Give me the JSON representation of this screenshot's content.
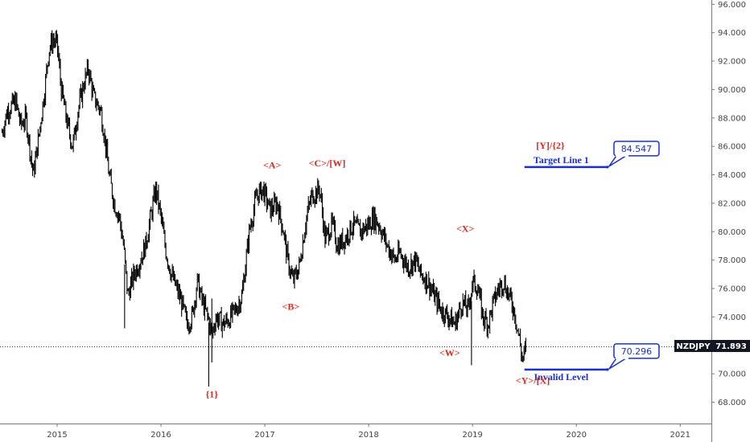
{
  "chart_data": {
    "type": "line",
    "style": "ohlc-bars",
    "symbol": "NZDJPY",
    "last_price": "71.893",
    "ylim": [
      66.5,
      96.3
    ],
    "yticks": [
      "96.000",
      "94.000",
      "92.000",
      "90.000",
      "88.000",
      "86.000",
      "84.000",
      "82.000",
      "80.000",
      "78.000",
      "76.000",
      "74.000",
      "72.000",
      "70.000",
      "68.000"
    ],
    "xlim": [
      2014.45,
      2021.3
    ],
    "xticks": [
      "2015",
      "2016",
      "2017",
      "2018",
      "2019",
      "2020",
      "2021"
    ],
    "grid": false,
    "series": [
      {
        "x": [
          2014.47,
          2014.52,
          2014.6,
          2014.65,
          2014.7,
          2014.77,
          2014.82,
          2014.88,
          2014.92,
          2014.96,
          2015.0,
          2015.04,
          2015.1,
          2015.15,
          2015.2,
          2015.26,
          2015.3,
          2015.35,
          2015.42,
          2015.46,
          2015.5,
          2015.55,
          2015.6,
          2015.64,
          2015.68,
          2015.74,
          2015.8,
          2015.85,
          2015.9,
          2015.95,
          2016.0,
          2016.05,
          2016.1,
          2016.15,
          2016.2,
          2016.25,
          2016.3,
          2016.35,
          2016.4,
          2016.45,
          2016.49,
          2016.53,
          2016.6,
          2016.65,
          2016.72,
          2016.78,
          2016.85,
          2016.92,
          2016.98,
          2017.05,
          2017.12,
          2017.18,
          2017.22,
          2017.27,
          2017.33,
          2017.4,
          2017.45,
          2017.53,
          2017.58,
          2017.65,
          2017.7,
          2017.77,
          2017.85,
          2017.92,
          2018.0,
          2018.05,
          2018.1,
          2018.18,
          2018.25,
          2018.3,
          2018.38,
          2018.45,
          2018.5,
          2018.57,
          2018.63,
          2018.7,
          2018.77,
          2018.83,
          2018.9,
          2018.96,
          2019.0,
          2019.05,
          2019.1,
          2019.15,
          2019.2,
          2019.25,
          2019.3,
          2019.35,
          2019.4,
          2019.45,
          2019.48,
          2019.52
        ],
        "y": [
          87.0,
          88.5,
          89.2,
          87.5,
          88.0,
          84.0,
          86.5,
          90.0,
          92.8,
          93.5,
          93.2,
          90.0,
          87.5,
          86.0,
          88.5,
          90.5,
          91.5,
          89.5,
          88.5,
          86.5,
          84.0,
          82.0,
          81.0,
          79.0,
          75.5,
          77.0,
          78.0,
          79.0,
          81.0,
          83.0,
          81.0,
          78.5,
          77.0,
          76.0,
          75.0,
          73.5,
          74.0,
          76.5,
          75.0,
          74.0,
          72.8,
          74.0,
          73.5,
          73.8,
          74.5,
          75.5,
          80.0,
          82.5,
          83.0,
          81.5,
          82.0,
          80.0,
          78.0,
          76.5,
          77.5,
          81.0,
          82.5,
          83.0,
          79.5,
          80.5,
          79.0,
          79.5,
          80.5,
          80.0,
          80.5,
          81.0,
          80.5,
          79.0,
          78.0,
          78.5,
          77.5,
          78.0,
          77.0,
          76.5,
          75.5,
          74.5,
          74.0,
          73.5,
          75.0,
          74.5,
          76.5,
          76.0,
          74.0,
          73.5,
          75.0,
          76.0,
          76.5,
          75.5,
          74.5,
          72.5,
          71.0,
          71.9
        ]
      }
    ],
    "spikes_low": [
      {
        "x": 2015.65,
        "y": 73.2
      },
      {
        "x": 2016.46,
        "y": 69.1
      },
      {
        "x": 2016.49,
        "y": 70.8
      },
      {
        "x": 2018.99,
        "y": 70.6
      }
    ],
    "annotations": [
      {
        "text": "<A>",
        "x": 2017.07,
        "y": 84.45
      },
      {
        "text": "<B>",
        "x": 2017.25,
        "y": 74.5
      },
      {
        "text": "<C>/[W]",
        "x": 2017.6,
        "y": 84.6
      },
      {
        "text": "<X>",
        "x": 2018.93,
        "y": 80.0
      },
      {
        "text": "<W>",
        "x": 2018.78,
        "y": 71.25
      },
      {
        "text": "{1}",
        "x": 2016.49,
        "y": 68.35
      },
      {
        "text": "<Y>/[X]",
        "x": 2019.58,
        "y": 69.3
      },
      {
        "text": "[Y]/{2}",
        "x": 2019.75,
        "y": 85.85
      }
    ],
    "levels": [
      {
        "label": "Target Line 1",
        "value": "84.547",
        "y": 84.547,
        "x_start": 2019.5,
        "x_end": 2020.3
      },
      {
        "label": "Invalid Level",
        "value": "70.296",
        "y": 70.296,
        "x_start": 2019.5,
        "x_end": 2020.3
      }
    ],
    "colors": {
      "price": "#000000",
      "wave_labels": "#e0261e",
      "levels": "#1a2fd0",
      "symbol_badge": "#131722"
    }
  }
}
